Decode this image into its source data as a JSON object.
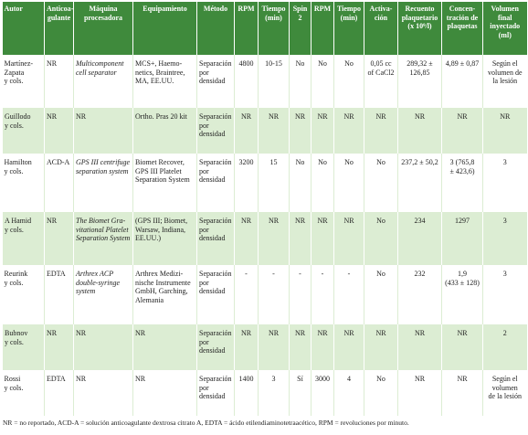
{
  "header": {
    "columns": [
      "Autor",
      "Anticoa-\ngulante",
      "Máquina\nprocesadora",
      "Equipamiento",
      "Método",
      "RPM",
      "Tiempo\n(min)",
      "Spin\n2",
      "RPM",
      "Tiempo\n(min)",
      "Activa-\nción",
      "Recuento\nplaquetario\n(x 10⁹/l)",
      "Concen-\ntración de\nplaquetas",
      "Volumen\nfinal\ninyectado\n(ml)"
    ]
  },
  "table": {
    "rows": [
      [
        "Martínez-\nZapata\ny cols.",
        "NR",
        "Multicomponent\ncell separator",
        "MCS+, Haemo-\nnetics, Braintree,\nMA, EE.UU.",
        "Separación\npor\ndensidad",
        "4800",
        "10-15",
        "No",
        "No",
        "No",
        "0,05 cc\nof CaCl2",
        "289,32 ±\n126,85",
        "4,89 ± 0,87",
        "Según el\nvolumen de\nla lesión"
      ],
      [
        "Guillodo\ny cols.",
        "NR",
        "NR",
        "Ortho. Pras 20 kit",
        "Separación\npor\ndensidad",
        "NR",
        "NR",
        "NR",
        "NR",
        "NR",
        "NR",
        "NR",
        "NR",
        "NR"
      ],
      [
        "Hamilton\ny cols.",
        "ACD-A",
        "GPS III centrifuge\nseparation system",
        "Biomet Recover,\nGPS III Platelet\nSeparation System",
        "Separación\npor\ndensidad",
        "3200",
        "15",
        "No",
        "No",
        "No",
        "No",
        "237,2 ± 50,2",
        "3 (765,8\n± 423,6)",
        "3"
      ],
      [
        "A Hamid\ny cols.",
        "NR",
        "The Biomet Gra-\nvitational Platelet\nSeparation System",
        "(GPS III; Biomet,\nWarsaw, Indiana,\nEE.UU.)",
        "Separación\npor\ndensidad",
        "NR",
        "NR",
        "NR",
        "NR",
        "NR",
        "No",
        "234",
        "1297",
        "3"
      ],
      [
        "Reurink\ny cols.",
        "EDTA",
        "Arthrex ACP\ndouble-syringe\nsystem",
        "Arthrex Medizi-\nnische Instrumente\nGmbH, Garching,\nAlemania",
        "Separación\npor\ndensidad",
        "-",
        "-",
        "-",
        "-",
        "-",
        "No",
        "232",
        "1,9\n(433 ± 128)",
        "3"
      ],
      [
        "Bubnov\ny cols.",
        "NR",
        "NR",
        "NR",
        "Separación\npor\ndensidad",
        "NR",
        "NR",
        "NR",
        "NR",
        "NR",
        "NR",
        "NR",
        "NR",
        "2"
      ],
      [
        "Rossi\ny cols.",
        "EDTA",
        "NR",
        "NR",
        "Separación\npor\ndensidad",
        "1400",
        "3",
        "Sí",
        "3000",
        "4",
        "No",
        "NR",
        "NR",
        "Según el\nvolumen\nde la lesión"
      ]
    ]
  },
  "footnote": "NR = no reportado, ACD-A =  solución anticoagulante dextrosa citrato A, EDTA = ácido etilendiaminotetraacético, RPM = revoluciones por minuto."
}
